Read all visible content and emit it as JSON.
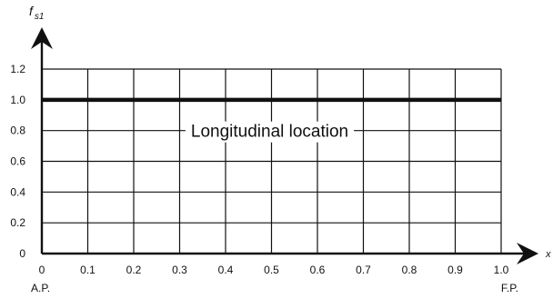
{
  "chart_data": {
    "type": "line",
    "y_axis_label": {
      "main": "f",
      "sub": "s1"
    },
    "x_axis_label": "x",
    "x_ticks": [
      "0",
      "0.1",
      "0.2",
      "0.3",
      "0.4",
      "0.5",
      "0.6",
      "0.7",
      "0.8",
      "0.9",
      "1.0"
    ],
    "y_ticks": [
      "0",
      "0.2",
      "0.4",
      "0.6",
      "0.8",
      "1.0",
      "1.2"
    ],
    "xlim": [
      0,
      1.0
    ],
    "ylim": [
      0,
      1.2
    ],
    "grid": true,
    "end_labels": {
      "left": "A.P.",
      "right": "F.P."
    },
    "annotation": {
      "text": "Longitudinal location",
      "x": 0.5,
      "y": 0.8
    },
    "series": [
      {
        "x": [
          0,
          1.0
        ],
        "y": [
          1.0,
          1.0
        ],
        "color": "#111111"
      }
    ]
  }
}
